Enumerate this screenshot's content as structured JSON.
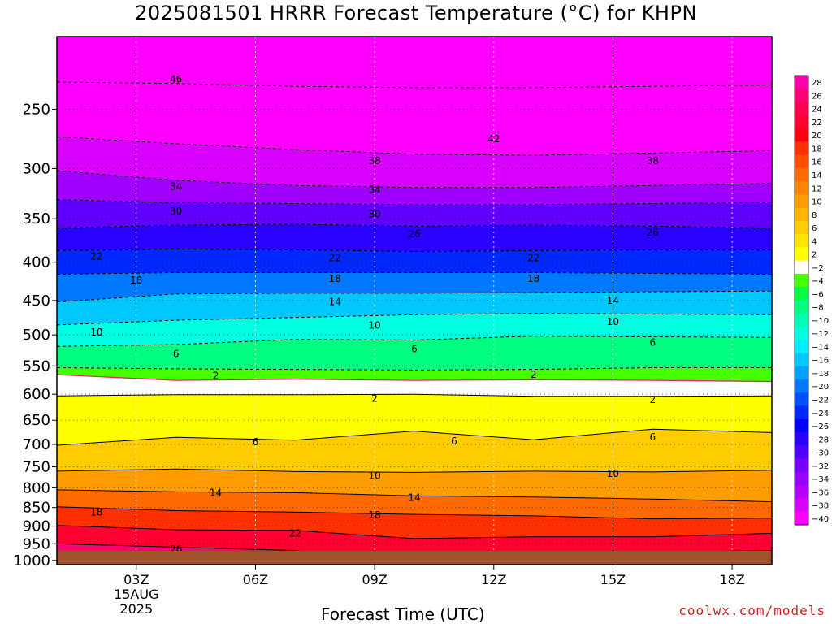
{
  "chart_data": {
    "type": "heatmap",
    "title": "2025081501 HRRR Forecast Temperature (°C) for KHPN",
    "xlabel": "Forecast Time (UTC)",
    "ylabel": "",
    "x_ticks": [
      "03Z",
      "06Z",
      "09Z",
      "12Z",
      "15Z",
      "18Z"
    ],
    "x_tick_hours": [
      3,
      6,
      9,
      12,
      15,
      18
    ],
    "x_range_hours": [
      1,
      19
    ],
    "date_label": [
      "15AUG",
      "2025"
    ],
    "y_ticks": [
      250,
      300,
      350,
      400,
      450,
      500,
      550,
      600,
      650,
      700,
      750,
      800,
      850,
      900,
      950,
      1000
    ],
    "y_scale": "log",
    "y_reversed": true,
    "y_range": [
      200,
      1013
    ],
    "colorbar": {
      "labels": [
        28,
        26,
        24,
        22,
        20,
        18,
        16,
        14,
        12,
        10,
        8,
        6,
        4,
        2,
        -2,
        -4,
        -6,
        -8,
        -10,
        -12,
        -14,
        -16,
        -18,
        -20,
        -22,
        -24,
        -26,
        -28,
        -30,
        -32,
        -34,
        -36,
        -38,
        -40
      ],
      "colors": [
        "#ff00aa",
        "#ff0077",
        "#ff0050",
        "#ff0030",
        "#ff0010",
        "#ff3000",
        "#ff4e00",
        "#ff6a00",
        "#ff8400",
        "#ff9c00",
        "#ffb400",
        "#ffcc00",
        "#ffe400",
        "#ffff00",
        "#ffffff",
        "#44ff00",
        "#00ff40",
        "#00ff80",
        "#00ffb4",
        "#00ffe0",
        "#00eeff",
        "#00c8ff",
        "#00a0ff",
        "#0078ff",
        "#0050ff",
        "#0028ff",
        "#0000ff",
        "#2a00ff",
        "#5000ff",
        "#7800ff",
        "#9800ff",
        "#b800ff",
        "#d800ff",
        "#ff00ff"
      ]
    },
    "contours": [
      {
        "value": "46",
        "lev": [
          200,
          200,
          200,
          200,
          200,
          200,
          200
        ],
        "label_hour": 4
      },
      {
        "value": "42",
        "lev": [
          230,
          231,
          233,
          234,
          234,
          233,
          232
        ],
        "label_hour": 12
      },
      {
        "value": "38",
        "lev": [
          272,
          278,
          283,
          287,
          288,
          286,
          284
        ],
        "label_hour": 9
      },
      {
        "value": "34",
        "lev": [
          302,
          311,
          316,
          318,
          318,
          316,
          314
        ],
        "label_hour": 4
      },
      {
        "value": "30",
        "lev": [
          330,
          333,
          334,
          335,
          335,
          334,
          333
        ],
        "label_hour": 4
      },
      {
        "value": "-26",
        "lev": [
          360,
          357,
          356,
          358,
          357,
          358,
          360
        ],
        "label_hour": 10
      },
      {
        "value": "-22",
        "lev": [
          386,
          384,
          385,
          387,
          386,
          385,
          385
        ],
        "label_hour": 2
      },
      {
        "value": "-18",
        "lev": [
          415,
          413,
          413,
          413,
          413,
          414,
          415
        ],
        "label_hour": 3
      },
      {
        "value": "-14",
        "lev": [
          452,
          441,
          440,
          440,
          439,
          438,
          437
        ],
        "label_hour": 8
      },
      {
        "value": "-10",
        "lev": [
          485,
          478,
          474,
          470,
          468,
          469,
          470
        ],
        "label_hour": 2
      },
      {
        "value": "-6",
        "lev": [
          518,
          515,
          507,
          508,
          502,
          503,
          504
        ],
        "label_hour": 4
      },
      {
        "value": "-2",
        "lev": [
          553,
          555,
          556,
          557,
          556,
          553,
          553
        ],
        "label_hour": 5
      },
      {
        "value": "0",
        "lev": [
          565,
          575,
          573,
          575,
          574,
          575,
          577
        ],
        "label_hour": null
      },
      {
        "value": "2",
        "lev": [
          603,
          601,
          601,
          600,
          604,
          604,
          603
        ],
        "label_hour": 9
      },
      {
        "value": "6",
        "lev": [
          702,
          685,
          691,
          672,
          690,
          668,
          675
        ],
        "label_hour": 6
      },
      {
        "value": "10",
        "lev": [
          760,
          755,
          761,
          763,
          760,
          762,
          758
        ],
        "label_hour": 9
      },
      {
        "value": "14",
        "lev": [
          805,
          810,
          812,
          820,
          823,
          828,
          835
        ],
        "label_hour": 5
      },
      {
        "value": "18",
        "lev": [
          848,
          858,
          862,
          868,
          872,
          880,
          878
        ],
        "label_hour": 2
      },
      {
        "value": "22",
        "lev": [
          898,
          910,
          912,
          935,
          930,
          930,
          920
        ],
        "label_hour": 7
      },
      {
        "value": "26",
        "lev": [
          950,
          960,
          970,
          1013,
          1013,
          975,
          970
        ],
        "label_hour": 4
      }
    ],
    "surface_lev": 1000,
    "label_positions": [
      {
        "text": "46",
        "hour": 4,
        "lev": 228
      },
      {
        "text": "42",
        "hour": 12,
        "lev": 274
      },
      {
        "text": "38",
        "hour": 9,
        "lev": 293
      },
      {
        "text": "38",
        "hour": 16,
        "lev": 293
      },
      {
        "text": "34",
        "hour": 4,
        "lev": 317
      },
      {
        "text": "34",
        "hour": 9,
        "lev": 320
      },
      {
        "text": "30",
        "hour": 4,
        "lev": 342
      },
      {
        "text": "30",
        "hour": 9,
        "lev": 345
      },
      {
        "text": "26",
        "hour": 10,
        "lev": 367
      },
      {
        "text": "26",
        "hour": 16,
        "lev": 365
      },
      {
        "text": "22",
        "hour": 2,
        "lev": 393
      },
      {
        "text": "22",
        "hour": 8,
        "lev": 395
      },
      {
        "text": "22",
        "hour": 13,
        "lev": 395
      },
      {
        "text": "18",
        "hour": 3,
        "lev": 423
      },
      {
        "text": "18",
        "hour": 8,
        "lev": 421
      },
      {
        "text": "18",
        "hour": 13,
        "lev": 421
      },
      {
        "text": "14",
        "hour": 8,
        "lev": 452
      },
      {
        "text": "14",
        "hour": 15,
        "lev": 450
      },
      {
        "text": "10",
        "hour": 2,
        "lev": 496
      },
      {
        "text": "10",
        "hour": 9,
        "lev": 486
      },
      {
        "text": "10",
        "hour": 15,
        "lev": 480
      },
      {
        "text": "6",
        "hour": 4,
        "lev": 530
      },
      {
        "text": "6",
        "hour": 10,
        "lev": 522
      },
      {
        "text": "6",
        "hour": 16,
        "lev": 512
      },
      {
        "text": "2",
        "hour": 5,
        "lev": 567
      },
      {
        "text": "2",
        "hour": 13,
        "lev": 565
      },
      {
        "text": "2",
        "hour": 9,
        "lev": 608
      },
      {
        "text": "2",
        "hour": 16,
        "lev": 610
      },
      {
        "text": "6",
        "hour": 6,
        "lev": 695
      },
      {
        "text": "6",
        "hour": 11,
        "lev": 693
      },
      {
        "text": "6",
        "hour": 16,
        "lev": 685
      },
      {
        "text": "10",
        "hour": 9,
        "lev": 771
      },
      {
        "text": "10",
        "hour": 15,
        "lev": 766
      },
      {
        "text": "14",
        "hour": 5,
        "lev": 812
      },
      {
        "text": "14",
        "hour": 10,
        "lev": 824
      },
      {
        "text": "18",
        "hour": 2,
        "lev": 862
      },
      {
        "text": "18",
        "hour": 9,
        "lev": 870
      },
      {
        "text": "22",
        "hour": 7,
        "lev": 920
      },
      {
        "text": "22",
        "hour": 12,
        "lev": 990
      },
      {
        "text": "26",
        "hour": 4,
        "lev": 966
      }
    ]
  },
  "footer": {
    "credit": "coolwx.com/models"
  },
  "colors": {
    "surface": "#a0522d",
    "freezing_line": "#e8207a"
  }
}
